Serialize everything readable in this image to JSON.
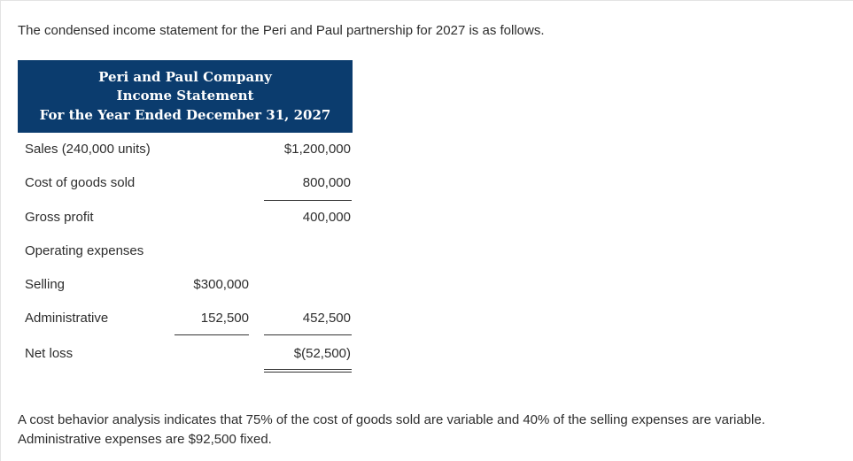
{
  "intro_text": "The condensed income statement for the Peri and Paul partnership for 2027 is as follows.",
  "statement": {
    "company": "Peri and Paul Company",
    "title": "Income Statement",
    "period": "For the Year Ended December 31, 2027",
    "header_color": "#0b3c6e",
    "rows": {
      "sales": {
        "label": "Sales (240,000 units)",
        "col2": "$1,200,000"
      },
      "cogs": {
        "label": "Cost of goods sold",
        "col2": "800,000"
      },
      "gross_profit": {
        "label": "Gross profit",
        "col2": "400,000"
      },
      "operating_expenses": {
        "label": "Operating expenses"
      },
      "selling": {
        "label": "Selling",
        "col1": "$300,000"
      },
      "administrative": {
        "label": "Administrative",
        "col1": "152,500",
        "col2": "452,500"
      },
      "net_loss": {
        "label": "Net loss",
        "col2": "$(52,500)"
      }
    }
  },
  "note_text": "A cost behavior analysis indicates that 75% of the cost of goods sold are variable and 40% of the selling expenses are variable. Administrative expenses are $92,500 fixed."
}
